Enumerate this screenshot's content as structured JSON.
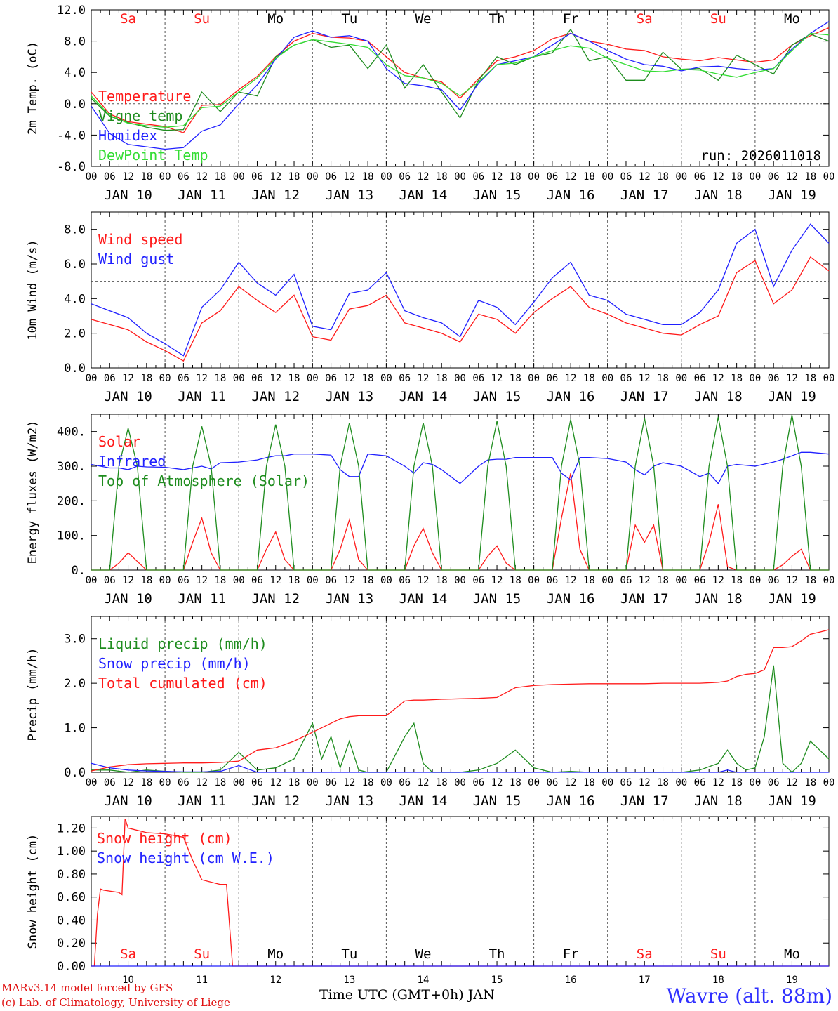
{
  "colors": {
    "red": "#ff1a1a",
    "green": "#1e8c1e",
    "blue": "#2020ff",
    "light_green": "#33dd33",
    "weekend": "#ff1a1a",
    "weekday": "#000000"
  },
  "days": [
    {
      "abbr": "Sa",
      "num": "10",
      "date": "JAN 10",
      "weekend": true
    },
    {
      "abbr": "Su",
      "num": "11",
      "date": "JAN 11",
      "weekend": true
    },
    {
      "abbr": "Mo",
      "num": "12",
      "date": "JAN 12",
      "weekend": false
    },
    {
      "abbr": "Tu",
      "num": "13",
      "date": "JAN 13",
      "weekend": false
    },
    {
      "abbr": "We",
      "num": "14",
      "date": "JAN 14",
      "weekend": false
    },
    {
      "abbr": "Th",
      "num": "15",
      "date": "JAN 15",
      "weekend": false
    },
    {
      "abbr": "Fr",
      "num": "16",
      "date": "JAN 16",
      "weekend": false
    },
    {
      "abbr": "Sa",
      "num": "17",
      "date": "JAN 17",
      "weekend": true
    },
    {
      "abbr": "Su",
      "num": "18",
      "date": "JAN 18",
      "weekend": true
    },
    {
      "abbr": "Mo",
      "num": "19",
      "date": "JAN 19",
      "weekend": false
    }
  ],
  "hour_labels": [
    "00",
    "06",
    "12",
    "18"
  ],
  "final_hour_label": "00",
  "footer": {
    "model": "MARv3.14 model forced by GFS",
    "lab": "(c) Lab. of Climatology, University of Liege",
    "x_axis": "Time UTC (GMT+0h) JAN",
    "location": "Wavre (alt. 88m)"
  },
  "chart_data": [
    {
      "id": "temperature",
      "type": "line",
      "ylabel": "2m Temp. (oC)",
      "ylim": [
        -8,
        12
      ],
      "yticks": [
        "-8.0",
        "-4.0",
        "0.0",
        "4.0",
        "8.0",
        "12.0"
      ],
      "ytick_values": [
        -8,
        -4,
        0,
        4,
        8,
        12
      ],
      "ref_line": 0,
      "run_label": "run: 2026011018",
      "x_hours": [
        0,
        6,
        12,
        18,
        24,
        30,
        36,
        42,
        48,
        54,
        60,
        66,
        72,
        78,
        84,
        90,
        96,
        102,
        108,
        114,
        120,
        126,
        132,
        138,
        144,
        150,
        156,
        162,
        168,
        174,
        180,
        186,
        192,
        198,
        204,
        210,
        216,
        222,
        228,
        234,
        240
      ],
      "series": [
        {
          "name": "Temperature",
          "color": "red",
          "values": [
            1.5,
            -1.3,
            -2.3,
            -2.6,
            -2.9,
            -3.7,
            -0.2,
            -0.1,
            1.8,
            3.5,
            6.0,
            8.0,
            9.0,
            8.5,
            8.4,
            8.0,
            6.0,
            4.0,
            3.3,
            2.8,
            0.7,
            3.2,
            5.5,
            6.0,
            6.8,
            8.3,
            9.0,
            8.0,
            7.6,
            7.0,
            6.8,
            6.0,
            5.7,
            5.5,
            5.9,
            5.6,
            5.3,
            5.6,
            7.5,
            8.7,
            9.7
          ]
        },
        {
          "name": "Vigne temp",
          "color": "green",
          "values": [
            0.7,
            -1.6,
            -2.4,
            -3.0,
            -3.4,
            -3.3,
            1.5,
            -1.0,
            1.5,
            1.0,
            6.0,
            7.5,
            8.2,
            7.2,
            7.5,
            4.5,
            7.5,
            2.0,
            5.0,
            1.5,
            -1.8,
            3.0,
            6.0,
            5.0,
            6.0,
            6.5,
            9.5,
            5.5,
            6.0,
            3.0,
            3.0,
            6.6,
            4.4,
            4.5,
            3.0,
            6.2,
            5.0,
            3.8,
            7.5,
            8.9,
            8.0
          ]
        },
        {
          "name": "Humidex",
          "color": "blue",
          "values": [
            -0.3,
            -3.8,
            -5.2,
            -5.5,
            -5.8,
            -5.6,
            -3.5,
            -2.7,
            0.0,
            2.4,
            5.7,
            8.5,
            9.3,
            8.5,
            8.7,
            8.0,
            4.5,
            2.6,
            2.3,
            1.8,
            -0.8,
            2.6,
            5.0,
            5.5,
            6.0,
            7.5,
            9.0,
            8.0,
            6.8,
            5.7,
            5.0,
            4.8,
            4.2,
            4.7,
            4.8,
            4.5,
            4.3,
            4.5,
            7.0,
            9.0,
            10.5
          ]
        },
        {
          "name": "DewPoint Temp",
          "color": "light_green",
          "values": [
            1.0,
            -1.5,
            -2.5,
            -2.8,
            -3.0,
            -2.8,
            -0.5,
            -0.3,
            1.5,
            3.3,
            5.8,
            7.5,
            8.2,
            7.9,
            7.6,
            7.2,
            5.0,
            3.6,
            3.3,
            2.6,
            1.0,
            2.8,
            5.0,
            5.2,
            6.0,
            6.8,
            7.4,
            7.1,
            5.8,
            5.0,
            4.2,
            4.1,
            4.4,
            4.3,
            3.8,
            3.4,
            4.0,
            4.5,
            6.8,
            9.0,
            8.8
          ]
        }
      ]
    },
    {
      "id": "wind",
      "type": "line",
      "ylabel": "10m Wind (m/s)",
      "ylim": [
        0,
        9
      ],
      "yticks": [
        "0.0",
        "2.0",
        "4.0",
        "6.0",
        "8.0"
      ],
      "ytick_values": [
        0,
        2,
        4,
        6,
        8
      ],
      "ref_line": 5,
      "x_hours": [
        0,
        6,
        12,
        18,
        24,
        30,
        36,
        42,
        48,
        54,
        60,
        66,
        72,
        78,
        84,
        90,
        96,
        102,
        108,
        114,
        120,
        126,
        132,
        138,
        144,
        150,
        156,
        162,
        168,
        174,
        180,
        186,
        192,
        198,
        204,
        210,
        216,
        222,
        228,
        234,
        240
      ],
      "series": [
        {
          "name": "Wind speed",
          "color": "red",
          "values": [
            2.8,
            2.5,
            2.2,
            1.5,
            1.0,
            0.4,
            2.6,
            3.3,
            4.7,
            3.9,
            3.2,
            4.2,
            1.8,
            1.6,
            3.4,
            3.6,
            4.2,
            2.6,
            2.3,
            2.0,
            1.5,
            3.1,
            2.8,
            2.0,
            3.2,
            4.0,
            4.7,
            3.5,
            3.1,
            2.6,
            2.3,
            2.0,
            1.9,
            2.5,
            3.0,
            5.5,
            6.2,
            3.7,
            4.5,
            6.4,
            5.6
          ]
        },
        {
          "name": "Wind gust",
          "color": "blue",
          "values": [
            3.7,
            3.3,
            2.9,
            2.0,
            1.4,
            0.7,
            3.5,
            4.5,
            6.1,
            4.9,
            4.2,
            5.4,
            2.4,
            2.2,
            4.3,
            4.5,
            5.5,
            3.3,
            2.9,
            2.6,
            1.8,
            3.9,
            3.5,
            2.5,
            3.8,
            5.2,
            6.1,
            4.2,
            3.9,
            3.1,
            2.8,
            2.5,
            2.5,
            3.2,
            4.5,
            7.2,
            8.0,
            4.7,
            6.8,
            8.3,
            7.2
          ]
        }
      ]
    },
    {
      "id": "energy",
      "type": "line",
      "ylabel": "Energy fluxes (W/m2)",
      "ylim": [
        0,
        450
      ],
      "yticks": [
        "0.",
        "100.",
        "200.",
        "300.",
        "400."
      ],
      "ytick_values": [
        0,
        100,
        200,
        300,
        400
      ],
      "x_hours": [
        0,
        6,
        9,
        12,
        15,
        18,
        24,
        30,
        33,
        36,
        39,
        42,
        48,
        54,
        57,
        60,
        63,
        66,
        72,
        78,
        81,
        84,
        87,
        90,
        96,
        102,
        105,
        108,
        111,
        114,
        120,
        126,
        129,
        132,
        135,
        138,
        144,
        150,
        153,
        156,
        159,
        162,
        168,
        174,
        177,
        180,
        183,
        186,
        192,
        198,
        201,
        204,
        207,
        210,
        216,
        222,
        225,
        228,
        231,
        234,
        240
      ],
      "series": [
        {
          "name": "Solar",
          "color": "red",
          "values": [
            0,
            0,
            20,
            50,
            25,
            0,
            0,
            0,
            80,
            150,
            50,
            0,
            0,
            0,
            60,
            110,
            30,
            0,
            0,
            0,
            60,
            145,
            30,
            0,
            0,
            0,
            70,
            120,
            50,
            0,
            0,
            0,
            40,
            70,
            20,
            0,
            0,
            0,
            150,
            280,
            60,
            0,
            0,
            0,
            130,
            80,
            130,
            0,
            0,
            0,
            80,
            190,
            10,
            0,
            0,
            0,
            15,
            40,
            60,
            0,
            0
          ]
        },
        {
          "name": "Infrared",
          "color": "blue",
          "values": [
            305,
            295,
            295,
            290,
            300,
            298,
            297,
            290,
            295,
            300,
            292,
            310,
            312,
            318,
            325,
            330,
            330,
            335,
            335,
            332,
            290,
            270,
            270,
            335,
            330,
            300,
            280,
            310,
            305,
            290,
            250,
            300,
            318,
            320,
            320,
            325,
            325,
            325,
            280,
            260,
            325,
            325,
            322,
            312,
            290,
            275,
            300,
            310,
            300,
            270,
            280,
            250,
            300,
            305,
            300,
            312,
            320,
            330,
            340,
            340,
            335
          ]
        },
        {
          "name": "Top of Atmosphere (Solar)",
          "color": "green",
          "values": [
            0,
            0,
            300,
            410,
            300,
            0,
            0,
            0,
            300,
            415,
            300,
            0,
            0,
            0,
            300,
            420,
            300,
            0,
            0,
            0,
            300,
            425,
            300,
            0,
            0,
            0,
            300,
            425,
            300,
            0,
            0,
            0,
            300,
            430,
            300,
            0,
            0,
            0,
            300,
            435,
            300,
            0,
            0,
            0,
            300,
            438,
            300,
            0,
            0,
            0,
            300,
            442,
            300,
            0,
            0,
            0,
            300,
            448,
            300,
            0,
            0
          ]
        }
      ]
    },
    {
      "id": "precip",
      "type": "line",
      "ylabel": "Precip (mm/h)",
      "ylim": [
        0,
        3.5
      ],
      "yticks": [
        "0.0",
        "1.0",
        "2.0",
        "3.0"
      ],
      "ytick_values": [
        0,
        1,
        2,
        3
      ],
      "x_hours": [
        0,
        6,
        12,
        18,
        24,
        30,
        36,
        42,
        48,
        54,
        60,
        66,
        72,
        75,
        78,
        81,
        84,
        87,
        90,
        96,
        102,
        105,
        108,
        111,
        114,
        120,
        126,
        132,
        138,
        144,
        150,
        156,
        162,
        168,
        174,
        180,
        186,
        192,
        198,
        204,
        207,
        210,
        213,
        216,
        219,
        222,
        225,
        228,
        231,
        234,
        237,
        240
      ],
      "series": [
        {
          "name": "Liquid precip (mm/h)",
          "color": "green",
          "values": [
            0.05,
            0.05,
            0.0,
            0.05,
            0.02,
            0.0,
            0.0,
            0.05,
            0.45,
            0.05,
            0.1,
            0.3,
            1.1,
            0.3,
            0.8,
            0.1,
            0.7,
            0.05,
            0.0,
            0.0,
            0.8,
            1.1,
            0.2,
            0.0,
            0.0,
            0.0,
            0.05,
            0.2,
            0.5,
            0.1,
            0.0,
            0.02,
            0.0,
            0.0,
            0.0,
            0.0,
            0.0,
            0.0,
            0.05,
            0.2,
            0.5,
            0.2,
            0.05,
            0.1,
            0.8,
            2.4,
            0.2,
            0.0,
            0.2,
            0.7,
            0.5,
            0.3
          ]
        },
        {
          "name": "Snow precip (mm/h)",
          "color": "blue",
          "values": [
            0.2,
            0.1,
            0.05,
            0.03,
            0.02,
            0.01,
            0.01,
            0.02,
            0.15,
            0.0,
            0.0,
            0.0,
            0.0,
            0.0,
            0.0,
            0.0,
            0.0,
            0.0,
            0.0,
            0.0,
            0.0,
            0.0,
            0.0,
            0.0,
            0.0,
            0.0,
            0.0,
            0.0,
            0.0,
            0.0,
            0.0,
            0.0,
            0.0,
            0.0,
            0.0,
            0.0,
            0.0,
            0.0,
            0.0,
            0.0,
            0.05,
            0.0,
            0.0,
            0.0,
            0.0,
            0.0,
            0.0,
            0.0,
            0.0,
            0.0,
            0.0,
            0.0
          ]
        },
        {
          "name": "Total cumulated (cm)",
          "color": "red",
          "values": [
            0.03,
            0.12,
            0.17,
            0.19,
            0.2,
            0.21,
            0.21,
            0.22,
            0.25,
            0.5,
            0.55,
            0.7,
            0.9,
            1.0,
            1.1,
            1.2,
            1.25,
            1.27,
            1.27,
            1.27,
            1.6,
            1.62,
            1.62,
            1.63,
            1.64,
            1.65,
            1.66,
            1.68,
            1.9,
            1.95,
            1.97,
            1.98,
            1.99,
            1.99,
            1.99,
            1.99,
            2.0,
            2.0,
            2.0,
            2.02,
            2.05,
            2.15,
            2.2,
            2.22,
            2.3,
            2.8,
            2.8,
            2.82,
            2.95,
            3.1,
            3.15,
            3.2
          ]
        }
      ]
    },
    {
      "id": "snow",
      "type": "line",
      "ylabel": "Snow height (cm)",
      "ylim": [
        0,
        1.3
      ],
      "yticks": [
        "0.00",
        "0.20",
        "0.40",
        "0.60",
        "0.80",
        "1.00",
        "1.20"
      ],
      "ytick_values": [
        0,
        0.2,
        0.4,
        0.6,
        0.8,
        1.0,
        1.2
      ],
      "x_hours": [
        0,
        1,
        2,
        3,
        4,
        9,
        10,
        11,
        12,
        18,
        24,
        30,
        33,
        36,
        42,
        44,
        45,
        46,
        240
      ],
      "series": [
        {
          "name": "Snow height (cm)",
          "color": "red",
          "values": [
            0,
            0,
            0.45,
            0.67,
            0.66,
            0.64,
            0.62,
            1.28,
            1.2,
            1.16,
            1.15,
            1.12,
            0.92,
            0.75,
            0.71,
            0.71,
            0.35,
            0,
            0
          ]
        },
        {
          "name": "Snow height (cm W.E.)",
          "color": "blue",
          "values": [
            0,
            0,
            0,
            0,
            0,
            0,
            0,
            0,
            0,
            0,
            0,
            0,
            0,
            0,
            0,
            0,
            0,
            0,
            0
          ]
        }
      ]
    }
  ]
}
